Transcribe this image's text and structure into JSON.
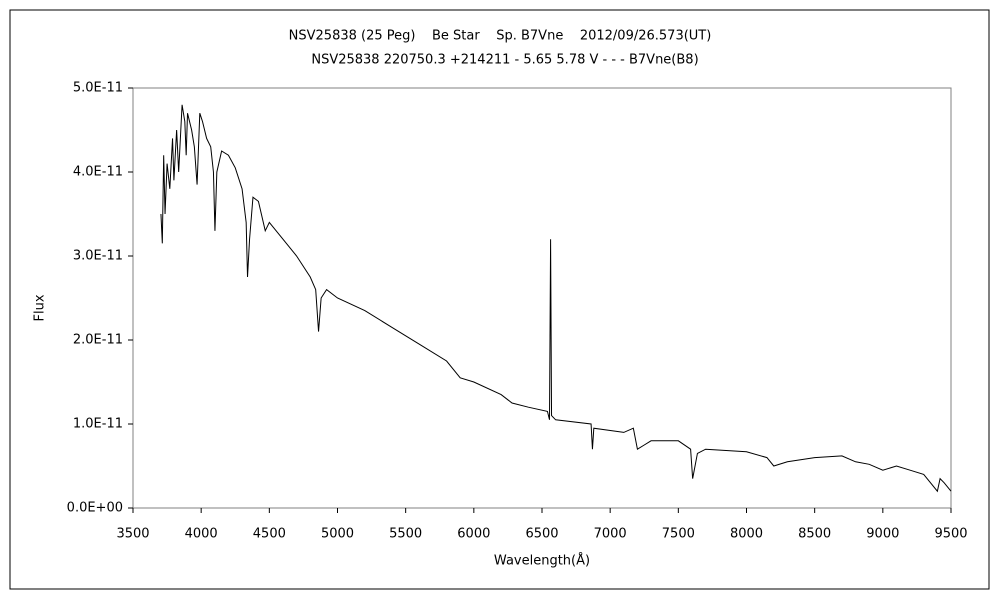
{
  "chart_data": {
    "type": "line",
    "title": "NSV25838 (25 Peg)    Be Star    Sp. B7Vne    2012/09/26.573(UT)",
    "subtitle": "NSV25838 220750.3 +214211 - 5.65 5.78 V - - - B7Vne(B8)",
    "x_label": "Wavelength(Å)",
    "y_label": "Flux",
    "xlim": [
      3500,
      9500
    ],
    "xticks": [
      3500,
      4000,
      4500,
      5000,
      5500,
      6000,
      6500,
      7000,
      7500,
      8000,
      8500,
      9000,
      9500
    ],
    "ylim": [
      0,
      5e-11
    ],
    "yticks": [
      {
        "value": 0,
        "label": "0.0E+00"
      },
      {
        "value": 1e-11,
        "label": "1.0E-11"
      },
      {
        "value": 2e-11,
        "label": "2.0E-11"
      },
      {
        "value": 3e-11,
        "label": "3.0E-11"
      },
      {
        "value": 4e-11,
        "label": "4.0E-11"
      },
      {
        "value": 5e-11,
        "label": "5.0E-11"
      }
    ],
    "color": "#000000",
    "x": [
      3705,
      3715,
      3725,
      3735,
      3750,
      3770,
      3790,
      3800,
      3820,
      3835,
      3860,
      3880,
      3890,
      3900,
      3930,
      3950,
      3970,
      3990,
      4010,
      4040,
      4070,
      4090,
      4101,
      4115,
      4150,
      4200,
      4250,
      4300,
      4330,
      4340,
      4355,
      4380,
      4420,
      4470,
      4500,
      4600,
      4700,
      4800,
      4840,
      4861,
      4880,
      4920,
      5000,
      5200,
      5400,
      5600,
      5800,
      5900,
      6000,
      6200,
      6280,
      6400,
      6540,
      6555,
      6563,
      6570,
      6600,
      6860,
      6870,
      6880,
      7100,
      7170,
      7200,
      7250,
      7300,
      7500,
      7590,
      7605,
      7640,
      7700,
      8000,
      8150,
      8200,
      8300,
      8500,
      8700,
      8800,
      8900,
      9000,
      9100,
      9200,
      9300,
      9400,
      9420,
      9450,
      9500
    ],
    "values": [
      3.5e-11,
      3.15e-11,
      4.2e-11,
      3.5e-11,
      4.1e-11,
      3.8e-11,
      4.4e-11,
      3.9e-11,
      4.5e-11,
      4e-11,
      4.8e-11,
      4.6e-11,
      4.2e-11,
      4.7e-11,
      4.5e-11,
      4.3e-11,
      3.85e-11,
      4.7e-11,
      4.6e-11,
      4.4e-11,
      4.3e-11,
      4e-11,
      3.3e-11,
      4e-11,
      4.25e-11,
      4.2e-11,
      4.05e-11,
      3.8e-11,
      3.4e-11,
      2.75e-11,
      3.2e-11,
      3.7e-11,
      3.65e-11,
      3.3e-11,
      3.4e-11,
      3.2e-11,
      3e-11,
      2.75e-11,
      2.6e-11,
      2.1e-11,
      2.5e-11,
      2.6e-11,
      2.5e-11,
      2.35e-11,
      2.15e-11,
      1.95e-11,
      1.75e-11,
      1.55e-11,
      1.5e-11,
      1.35e-11,
      1.25e-11,
      1.2e-11,
      1.15e-11,
      1.05e-11,
      3.2e-11,
      1.1e-11,
      1.05e-11,
      1e-11,
      7e-12,
      9.5e-12,
      9e-12,
      9.5e-12,
      7e-12,
      7.5e-12,
      8e-12,
      8e-12,
      7e-12,
      3.5e-12,
      6.5e-12,
      7e-12,
      6.7e-12,
      6e-12,
      5e-12,
      5.5e-12,
      6e-12,
      6.2e-12,
      5.5e-12,
      5.2e-12,
      4.5e-12,
      5e-12,
      4.5e-12,
      4e-12,
      2e-12,
      3.5e-12,
      3e-12,
      2e-12
    ]
  }
}
